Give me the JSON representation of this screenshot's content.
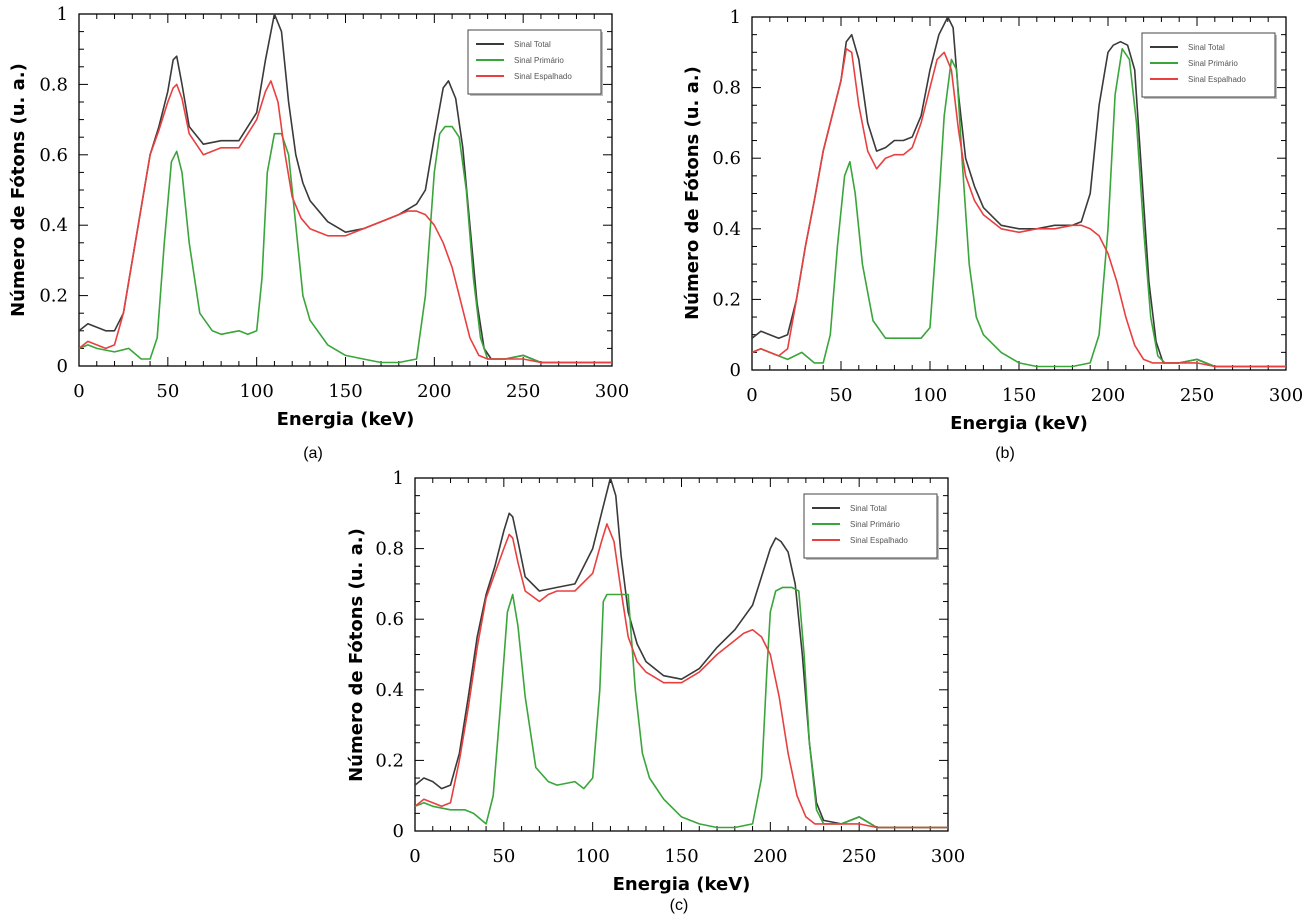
{
  "colors": {
    "total": "#3a3a3a",
    "primary": "#3aa53a",
    "scattered": "#e84040"
  },
  "chart_data": [
    {
      "type": "line",
      "panel_label": "(a)",
      "xlabel": "Energia (keV)",
      "ylabel": "Número de Fótons (u. a.)",
      "xlim": [
        0,
        300
      ],
      "ylim": [
        0,
        1
      ],
      "xticks": [
        0,
        50,
        100,
        150,
        200,
        250,
        300
      ],
      "yticks": [
        0,
        0.2,
        0.4,
        0.6,
        0.8,
        1
      ],
      "ytick_labels": [
        "0",
        "0.2",
        "0.4",
        "0.6",
        "0.8",
        "1"
      ],
      "grid": false,
      "legend_position": "top-right",
      "series": [
        {
          "name": "Sinal Total",
          "color": "#3a3a3a",
          "x": [
            0,
            5,
            10,
            15,
            20,
            25,
            30,
            35,
            40,
            45,
            50,
            53,
            55,
            58,
            62,
            70,
            80,
            90,
            100,
            105,
            110,
            114,
            118,
            122,
            126,
            130,
            140,
            150,
            160,
            170,
            180,
            190,
            195,
            200,
            205,
            208,
            212,
            216,
            220,
            224,
            228,
            232,
            240,
            250,
            260,
            280,
            300
          ],
          "y": [
            0.1,
            0.12,
            0.11,
            0.1,
            0.1,
            0.15,
            0.3,
            0.45,
            0.6,
            0.68,
            0.78,
            0.87,
            0.88,
            0.8,
            0.68,
            0.63,
            0.64,
            0.64,
            0.72,
            0.87,
            1.0,
            0.95,
            0.75,
            0.6,
            0.52,
            0.47,
            0.41,
            0.38,
            0.39,
            0.41,
            0.43,
            0.46,
            0.5,
            0.65,
            0.79,
            0.81,
            0.76,
            0.62,
            0.4,
            0.18,
            0.05,
            0.02,
            0.02,
            0.03,
            0.01,
            0.01,
            0.01
          ]
        },
        {
          "name": "Sinal Primário",
          "color": "#3aa53a",
          "x": [
            0,
            5,
            10,
            20,
            28,
            35,
            40,
            44,
            48,
            52,
            55,
            58,
            62,
            68,
            75,
            80,
            90,
            95,
            100,
            103,
            106,
            110,
            114,
            118,
            122,
            126,
            130,
            140,
            150,
            160,
            170,
            180,
            190,
            195,
            200,
            203,
            206,
            210,
            214,
            218,
            222,
            226,
            230,
            240,
            250,
            260,
            280,
            300
          ],
          "y": [
            0.05,
            0.06,
            0.05,
            0.04,
            0.05,
            0.02,
            0.02,
            0.08,
            0.35,
            0.58,
            0.61,
            0.55,
            0.35,
            0.15,
            0.1,
            0.09,
            0.1,
            0.09,
            0.1,
            0.25,
            0.55,
            0.66,
            0.66,
            0.6,
            0.4,
            0.2,
            0.13,
            0.06,
            0.03,
            0.02,
            0.01,
            0.01,
            0.02,
            0.2,
            0.55,
            0.66,
            0.68,
            0.68,
            0.65,
            0.5,
            0.25,
            0.08,
            0.02,
            0.02,
            0.03,
            0.01,
            0.01,
            0.01
          ]
        },
        {
          "name": "Sinal Espalhado",
          "color": "#e84040",
          "x": [
            0,
            5,
            10,
            15,
            20,
            25,
            30,
            35,
            40,
            45,
            50,
            53,
            55,
            58,
            62,
            70,
            80,
            90,
            100,
            105,
            108,
            112,
            116,
            120,
            125,
            130,
            140,
            150,
            160,
            170,
            180,
            185,
            190,
            195,
            200,
            205,
            210,
            215,
            220,
            225,
            230,
            240,
            250,
            260,
            280,
            300
          ],
          "y": [
            0.05,
            0.07,
            0.06,
            0.05,
            0.06,
            0.15,
            0.3,
            0.45,
            0.6,
            0.67,
            0.75,
            0.79,
            0.8,
            0.76,
            0.66,
            0.6,
            0.62,
            0.62,
            0.7,
            0.78,
            0.81,
            0.75,
            0.6,
            0.48,
            0.42,
            0.39,
            0.37,
            0.37,
            0.39,
            0.41,
            0.43,
            0.44,
            0.44,
            0.43,
            0.4,
            0.35,
            0.28,
            0.18,
            0.08,
            0.03,
            0.02,
            0.02,
            0.02,
            0.01,
            0.01,
            0.01
          ]
        }
      ]
    },
    {
      "type": "line",
      "panel_label": "(b)",
      "xlabel": "Energia (keV)",
      "ylabel": "Número de Fótons (u. a.)",
      "xlim": [
        0,
        300
      ],
      "ylim": [
        0,
        1
      ],
      "xticks": [
        0,
        50,
        100,
        150,
        200,
        250,
        300
      ],
      "yticks": [
        0,
        0.2,
        0.4,
        0.6,
        0.8,
        1
      ],
      "ytick_labels": [
        "0",
        "0.2",
        "0.4",
        "0.6",
        "0.8",
        "1"
      ],
      "grid": false,
      "legend_position": "top-right",
      "series": [
        {
          "name": "Sinal Total",
          "color": "#3a3a3a",
          "x": [
            0,
            5,
            10,
            15,
            20,
            25,
            30,
            35,
            40,
            45,
            50,
            53,
            56,
            60,
            65,
            70,
            75,
            80,
            85,
            90,
            95,
            100,
            105,
            110,
            113,
            116,
            120,
            125,
            130,
            140,
            150,
            160,
            170,
            180,
            185,
            190,
            195,
            200,
            203,
            207,
            211,
            215,
            219,
            223,
            227,
            231,
            240,
            250,
            260,
            280,
            300
          ],
          "y": [
            0.09,
            0.11,
            0.1,
            0.09,
            0.1,
            0.2,
            0.35,
            0.48,
            0.62,
            0.72,
            0.82,
            0.93,
            0.95,
            0.88,
            0.7,
            0.62,
            0.63,
            0.65,
            0.65,
            0.66,
            0.72,
            0.85,
            0.95,
            1.0,
            0.97,
            0.78,
            0.6,
            0.52,
            0.46,
            0.41,
            0.4,
            0.4,
            0.41,
            0.41,
            0.42,
            0.5,
            0.75,
            0.9,
            0.92,
            0.93,
            0.92,
            0.85,
            0.55,
            0.25,
            0.08,
            0.02,
            0.02,
            0.03,
            0.01,
            0.01,
            0.01
          ]
        },
        {
          "name": "Sinal Primário",
          "color": "#3aa53a",
          "x": [
            0,
            5,
            10,
            20,
            28,
            35,
            40,
            44,
            48,
            52,
            55,
            58,
            62,
            68,
            75,
            80,
            90,
            95,
            100,
            104,
            108,
            112,
            115,
            118,
            122,
            126,
            130,
            140,
            150,
            160,
            170,
            180,
            190,
            195,
            200,
            204,
            208,
            212,
            216,
            220,
            224,
            228,
            232,
            240,
            250,
            260,
            280,
            300
          ],
          "y": [
            0.05,
            0.06,
            0.05,
            0.03,
            0.05,
            0.02,
            0.02,
            0.1,
            0.35,
            0.55,
            0.59,
            0.5,
            0.3,
            0.14,
            0.09,
            0.09,
            0.09,
            0.09,
            0.12,
            0.4,
            0.72,
            0.88,
            0.85,
            0.6,
            0.3,
            0.15,
            0.1,
            0.05,
            0.02,
            0.01,
            0.01,
            0.01,
            0.02,
            0.1,
            0.4,
            0.78,
            0.91,
            0.88,
            0.7,
            0.4,
            0.15,
            0.04,
            0.02,
            0.02,
            0.03,
            0.01,
            0.01,
            0.01
          ]
        },
        {
          "name": "Sinal Espalhado",
          "color": "#e84040",
          "x": [
            0,
            5,
            10,
            15,
            20,
            25,
            30,
            35,
            40,
            45,
            50,
            53,
            56,
            60,
            65,
            70,
            75,
            80,
            85,
            90,
            95,
            100,
            104,
            108,
            112,
            116,
            120,
            125,
            130,
            140,
            150,
            160,
            170,
            180,
            185,
            190,
            195,
            200,
            205,
            210,
            215,
            220,
            225,
            230,
            240,
            250,
            260,
            280,
            300
          ],
          "y": [
            0.05,
            0.06,
            0.05,
            0.04,
            0.06,
            0.2,
            0.35,
            0.48,
            0.62,
            0.72,
            0.82,
            0.91,
            0.9,
            0.75,
            0.62,
            0.57,
            0.6,
            0.61,
            0.61,
            0.63,
            0.7,
            0.8,
            0.88,
            0.9,
            0.85,
            0.68,
            0.55,
            0.48,
            0.44,
            0.4,
            0.39,
            0.4,
            0.4,
            0.41,
            0.41,
            0.4,
            0.38,
            0.33,
            0.25,
            0.15,
            0.07,
            0.03,
            0.02,
            0.02,
            0.02,
            0.02,
            0.01,
            0.01,
            0.01
          ]
        }
      ]
    },
    {
      "type": "line",
      "panel_label": "(c)",
      "xlabel": "Energia (keV)",
      "ylabel": "Número de Fótons (u. a.)",
      "xlim": [
        0,
        300
      ],
      "ylim": [
        0,
        1
      ],
      "xticks": [
        0,
        50,
        100,
        150,
        200,
        250,
        300
      ],
      "yticks": [
        0,
        0.2,
        0.4,
        0.6,
        0.8,
        1
      ],
      "ytick_labels": [
        "0",
        "0.2",
        "0.4",
        "0.6",
        "0.8",
        "1"
      ],
      "grid": false,
      "legend_position": "top-right",
      "series": [
        {
          "name": "Sinal Total",
          "color": "#3a3a3a",
          "x": [
            0,
            5,
            10,
            15,
            20,
            25,
            30,
            35,
            40,
            45,
            50,
            53,
            55,
            58,
            62,
            70,
            80,
            90,
            100,
            105,
            110,
            113,
            116,
            120,
            125,
            130,
            140,
            150,
            160,
            170,
            180,
            190,
            195,
            200,
            203,
            206,
            210,
            214,
            218,
            222,
            226,
            230,
            240,
            250,
            260,
            280,
            300
          ],
          "y": [
            0.13,
            0.15,
            0.14,
            0.12,
            0.13,
            0.22,
            0.38,
            0.55,
            0.67,
            0.75,
            0.85,
            0.9,
            0.89,
            0.82,
            0.72,
            0.68,
            0.69,
            0.7,
            0.8,
            0.9,
            1.0,
            0.95,
            0.78,
            0.62,
            0.53,
            0.48,
            0.44,
            0.43,
            0.46,
            0.52,
            0.57,
            0.64,
            0.72,
            0.8,
            0.83,
            0.82,
            0.79,
            0.7,
            0.5,
            0.25,
            0.08,
            0.03,
            0.02,
            0.04,
            0.01,
            0.01,
            0.01
          ]
        },
        {
          "name": "Sinal Primário",
          "color": "#3aa53a",
          "x": [
            0,
            5,
            10,
            20,
            28,
            33,
            40,
            44,
            48,
            52,
            55,
            58,
            62,
            68,
            75,
            80,
            90,
            95,
            100,
            104,
            106,
            108,
            112,
            116,
            120,
            124,
            128,
            132,
            140,
            150,
            160,
            170,
            180,
            190,
            195,
            198,
            200,
            203,
            207,
            212,
            216,
            219,
            222,
            226,
            230,
            240,
            250,
            260,
            280,
            300
          ],
          "y": [
            0.07,
            0.08,
            0.07,
            0.06,
            0.06,
            0.05,
            0.02,
            0.1,
            0.35,
            0.62,
            0.67,
            0.58,
            0.38,
            0.18,
            0.14,
            0.13,
            0.14,
            0.12,
            0.15,
            0.4,
            0.65,
            0.67,
            0.67,
            0.67,
            0.67,
            0.4,
            0.22,
            0.15,
            0.09,
            0.04,
            0.02,
            0.01,
            0.01,
            0.02,
            0.15,
            0.45,
            0.62,
            0.68,
            0.69,
            0.69,
            0.68,
            0.5,
            0.25,
            0.06,
            0.02,
            0.02,
            0.04,
            0.01,
            0.01,
            0.01
          ]
        },
        {
          "name": "Sinal Espalhado",
          "color": "#e84040",
          "x": [
            0,
            5,
            10,
            15,
            20,
            25,
            30,
            35,
            40,
            45,
            50,
            53,
            55,
            58,
            62,
            70,
            75,
            80,
            90,
            100,
            105,
            108,
            112,
            116,
            120,
            125,
            130,
            140,
            150,
            160,
            170,
            180,
            185,
            190,
            195,
            200,
            205,
            210,
            215,
            220,
            225,
            230,
            240,
            250,
            260,
            280,
            300
          ],
          "y": [
            0.07,
            0.09,
            0.08,
            0.07,
            0.08,
            0.2,
            0.35,
            0.52,
            0.66,
            0.73,
            0.8,
            0.84,
            0.83,
            0.76,
            0.68,
            0.65,
            0.67,
            0.68,
            0.68,
            0.73,
            0.82,
            0.87,
            0.82,
            0.68,
            0.55,
            0.48,
            0.45,
            0.42,
            0.42,
            0.45,
            0.5,
            0.54,
            0.56,
            0.57,
            0.55,
            0.5,
            0.38,
            0.22,
            0.1,
            0.04,
            0.02,
            0.02,
            0.02,
            0.02,
            0.01,
            0.01,
            0.01
          ]
        }
      ]
    }
  ]
}
